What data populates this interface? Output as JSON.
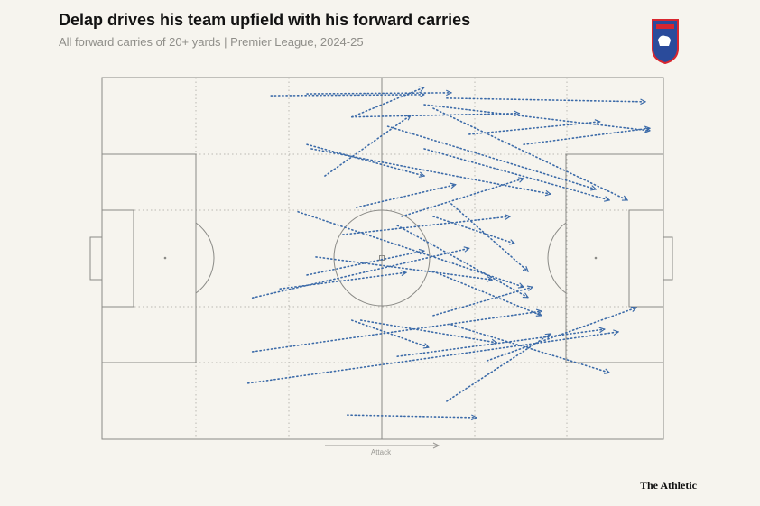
{
  "chart_data": {
    "type": "carries",
    "title": "Delap drives his team upfield with his forward carries",
    "subtitle": "All forward carries of 20+ yards | Premier League, 2024-25",
    "direction_label": "Attack",
    "source": "The Athletic",
    "color": "#3b6aa8",
    "xlim": [
      0,
      100
    ],
    "ylim": [
      0,
      100
    ],
    "x": [
      30.1,
      36.5,
      61.4,
      44.5,
      44.5,
      57.4,
      75.1,
      65.4,
      36.5,
      37.3,
      59.0,
      50.9,
      57.4,
      39.7,
      45.3,
      53.4,
      42.9,
      34.9,
      59.0,
      38.1,
      26.8,
      31.7,
      36.5,
      26.8,
      26.0,
      52.6,
      59.0,
      46.1,
      61.4,
      62.2,
      43.7,
      44.5,
      68.6,
      52.6,
      62.2,
      59.0
    ],
    "y": [
      5.0,
      4.5,
      5.7,
      10.9,
      10.9,
      7.5,
      18.5,
      15.7,
      18.5,
      19.7,
      8.5,
      13.5,
      19.7,
      27.2,
      35.9,
      38.4,
      43.4,
      37.1,
      38.4,
      49.6,
      60.9,
      58.4,
      54.6,
      75.8,
      84.5,
      77.1,
      65.8,
      67.1,
      89.5,
      68.3,
      93.3,
      67.1,
      78.3,
      40.9,
      34.9,
      53.6
    ],
    "x_end": [
      57.4,
      62.2,
      96.8,
      57.4,
      74.3,
      97.6,
      97.6,
      88.7,
      57.4,
      79.9,
      93.6,
      88.0,
      90.4,
      55.0,
      63.0,
      75.1,
      72.7,
      75.1,
      73.5,
      69.5,
      65.4,
      54.2,
      57.4,
      78.3,
      92.0,
      89.5,
      76.7,
      70.3,
      79.9,
      90.4,
      66.7,
      58.2,
      95.2,
      75.9,
      75.9,
      78.3
    ],
    "y_end": [
      4.7,
      4.2,
      6.7,
      2.7,
      9.9,
      14.7,
      14.0,
      12.2,
      27.2,
      32.2,
      33.9,
      30.9,
      33.9,
      10.4,
      29.6,
      27.9,
      38.4,
      57.9,
      45.9,
      55.9,
      47.2,
      53.9,
      47.9,
      64.6,
      70.3,
      69.6,
      57.9,
      73.3,
      70.8,
      81.6,
      94.0,
      74.6,
      63.6,
      60.8,
      53.6,
      65.8
    ]
  }
}
